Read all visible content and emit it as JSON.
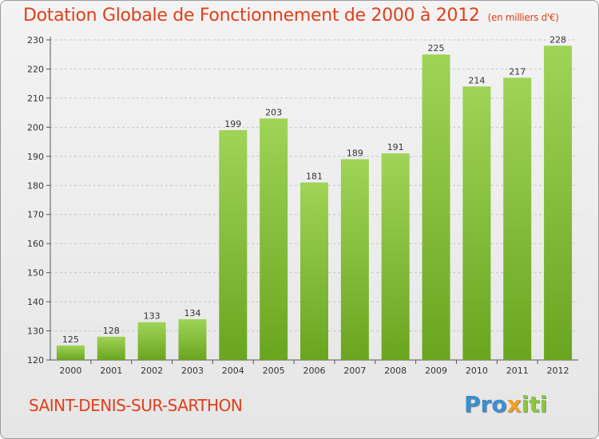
{
  "chart_data": {
    "type": "bar",
    "title": "Dotation Globale de Fonctionnement de 2000 à 2012",
    "subtitle": "(en milliers d'€)",
    "categories": [
      "2000",
      "2001",
      "2002",
      "2003",
      "2004",
      "2005",
      "2006",
      "2007",
      "2008",
      "2009",
      "2010",
      "2011",
      "2012"
    ],
    "values": [
      125,
      128,
      133,
      134,
      199,
      203,
      181,
      189,
      191,
      225,
      214,
      217,
      228
    ],
    "ylim": [
      120,
      230
    ],
    "yticks": [
      120,
      130,
      140,
      150,
      160,
      170,
      180,
      190,
      200,
      210,
      220,
      230
    ],
    "grid": true,
    "bar_color": "#8cc63f"
  },
  "commune": "SAINT-DENIS-SUR-SARTHON",
  "logo": {
    "letters": [
      "P",
      "r",
      "o",
      "x",
      "i",
      "t",
      "i"
    ],
    "colors": [
      "#3a8fd0",
      "#3a8fd0",
      "#3a8fd0",
      "#f0a020",
      "#8cc63f",
      "#8cc63f",
      "#8cc63f"
    ]
  }
}
